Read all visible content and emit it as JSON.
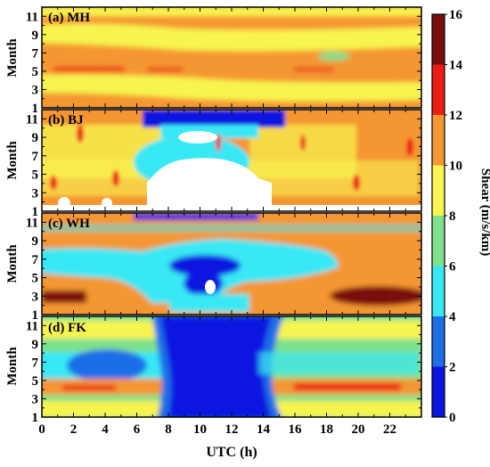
{
  "chart_data": {
    "type": "heatmap",
    "xlabel": "UTC (h)",
    "ylabel": "Month",
    "x_ticks": [
      "0",
      "2",
      "4",
      "6",
      "8",
      "10",
      "12",
      "14",
      "16",
      "18",
      "20",
      "22"
    ],
    "y_ticks": [
      "1",
      "3",
      "5",
      "7",
      "9",
      "11"
    ],
    "xlim": [
      0,
      24
    ],
    "ylim": [
      1,
      12
    ],
    "colorbar": {
      "label": "Shear (m/s/km)",
      "ticks": [
        "0",
        "2",
        "4",
        "6",
        "8",
        "10",
        "12",
        "14",
        "16"
      ],
      "levels": [
        0,
        2,
        4,
        6,
        8,
        10,
        12,
        14,
        16
      ],
      "colors": [
        "#0a14e0",
        "#1e6ee8",
        "#37e8f4",
        "#7fe08c",
        "#f8f450",
        "#f49632",
        "#ec1e14",
        "#7a0c0c"
      ]
    },
    "panels": [
      {
        "label": "(a) MH"
      },
      {
        "label": "(b) BJ"
      },
      {
        "label": "(c) WH"
      },
      {
        "label": "(d) FK"
      }
    ]
  }
}
